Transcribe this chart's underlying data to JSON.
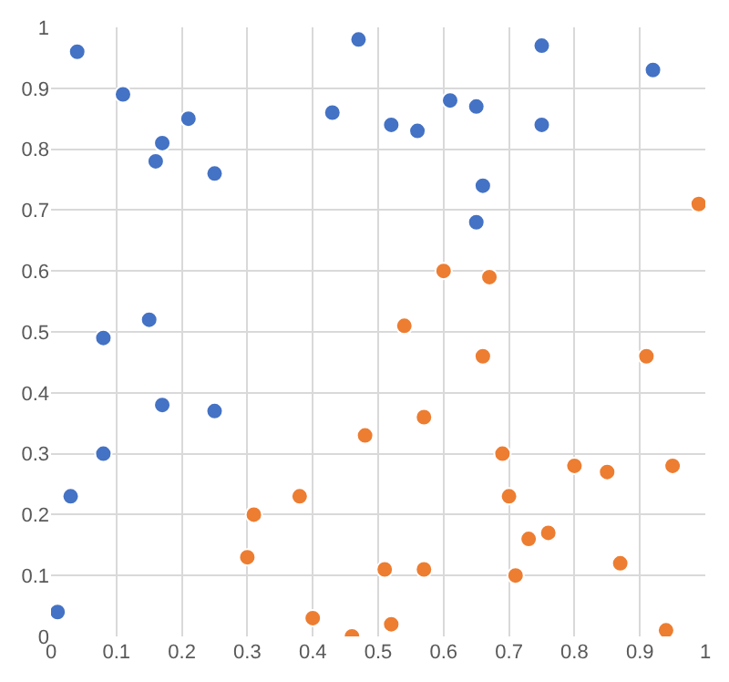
{
  "chart_data": {
    "type": "scatter",
    "xlim": [
      0,
      1
    ],
    "ylim": [
      0,
      1
    ],
    "xticks": [
      0,
      0.1,
      0.2,
      0.3,
      0.4,
      0.5,
      0.6,
      0.7,
      0.8,
      0.9,
      1
    ],
    "yticks": [
      0,
      0.1,
      0.2,
      0.3,
      0.4,
      0.5,
      0.6,
      0.7,
      0.8,
      0.9,
      1
    ],
    "grid": true,
    "marker": "circle",
    "series": [
      {
        "color": "#4472c4",
        "x": [
          0.04,
          0.11,
          0.21,
          0.17,
          0.16,
          0.25,
          0.47,
          0.43,
          0.52,
          0.56,
          0.61,
          0.65,
          0.75,
          0.75,
          0.92,
          0.66,
          0.65,
          0.15,
          0.08,
          0.17,
          0.25,
          0.08,
          0.03,
          0.01
        ],
        "values": [
          0.96,
          0.89,
          0.85,
          0.81,
          0.78,
          0.76,
          0.98,
          0.86,
          0.84,
          0.83,
          0.88,
          0.87,
          0.97,
          0.84,
          0.93,
          0.74,
          0.68,
          0.52,
          0.49,
          0.38,
          0.37,
          0.3,
          0.23,
          0.04
        ]
      },
      {
        "color": "#ed7d31",
        "x": [
          0.99,
          0.6,
          0.67,
          0.54,
          0.66,
          0.91,
          0.57,
          0.48,
          0.69,
          0.8,
          0.85,
          0.95,
          0.7,
          0.38,
          0.31,
          0.76,
          0.73,
          0.3,
          0.87,
          0.51,
          0.57,
          0.71,
          0.4,
          0.52,
          0.46,
          0.94
        ],
        "values": [
          0.71,
          0.6,
          0.59,
          0.51,
          0.46,
          0.46,
          0.36,
          0.33,
          0.3,
          0.28,
          0.27,
          0.28,
          0.23,
          0.23,
          0.2,
          0.17,
          0.16,
          0.13,
          0.12,
          0.11,
          0.11,
          0.1,
          0.03,
          0.02,
          0.0,
          0.01
        ]
      }
    ]
  }
}
